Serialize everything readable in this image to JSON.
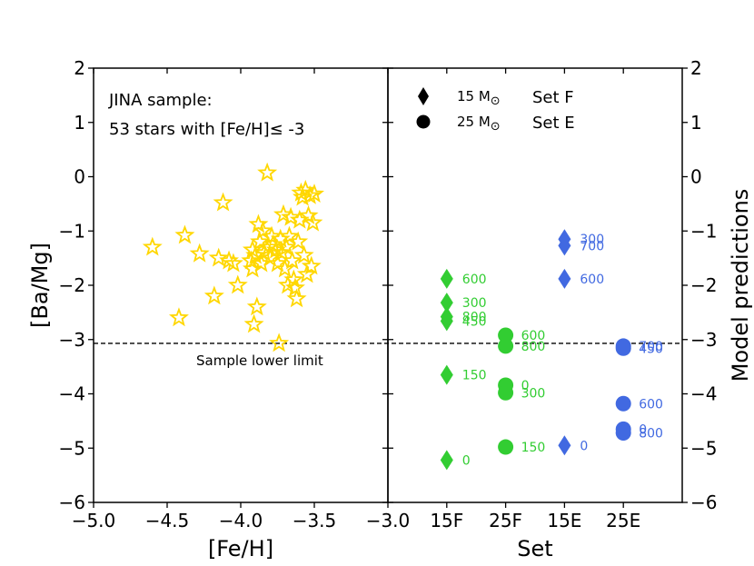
{
  "chart_data": [
    {
      "type": "scatter",
      "panel": "left",
      "xlabel": "[Fe/H]",
      "ylabel": "[Ba/Mg]",
      "xlim": [
        -5.0,
        -3.0
      ],
      "ylim": [
        -6,
        2
      ],
      "x_ticks": [
        -5.0,
        -4.5,
        -4.0,
        -3.5,
        -3.0
      ],
      "x_tick_labels": [
        "−5.0",
        "−4.5",
        "−4.0",
        "−3.5",
        "−3.0"
      ],
      "y_ticks": [
        2,
        1,
        0,
        -1,
        -2,
        -3,
        -4,
        -5,
        -6
      ],
      "y_tick_labels": [
        "2",
        "1",
        "0",
        "−1",
        "−2",
        "−3",
        "−4",
        "−5",
        "−6"
      ],
      "annotation_line1": "JINA sample:",
      "annotation_line2": "53 stars with [Fe/H]≤ -3",
      "limit_value": -3.07,
      "limit_label": "Sample lower limit",
      "marker": "star",
      "marker_color": "#FFD700",
      "points": [
        {
          "x": -4.6,
          "y": -1.3
        },
        {
          "x": -4.42,
          "y": -2.6
        },
        {
          "x": -4.38,
          "y": -1.08
        },
        {
          "x": -4.28,
          "y": -1.42
        },
        {
          "x": -4.18,
          "y": -2.2
        },
        {
          "x": -4.15,
          "y": -1.5
        },
        {
          "x": -4.12,
          "y": -0.48
        },
        {
          "x": -4.08,
          "y": -1.55
        },
        {
          "x": -4.05,
          "y": -1.6
        },
        {
          "x": -4.02,
          "y": -2.0
        },
        {
          "x": -3.93,
          "y": -1.55
        },
        {
          "x": -3.92,
          "y": -1.35
        },
        {
          "x": -3.92,
          "y": -1.7
        },
        {
          "x": -3.91,
          "y": -2.72
        },
        {
          "x": -3.9,
          "y": -1.45
        },
        {
          "x": -3.89,
          "y": -2.4
        },
        {
          "x": -3.88,
          "y": -0.88
        },
        {
          "x": -3.87,
          "y": -1.2
        },
        {
          "x": -3.86,
          "y": -1.6
        },
        {
          "x": -3.85,
          "y": -1.0
        },
        {
          "x": -3.84,
          "y": -1.4
        },
        {
          "x": -3.82,
          "y": 0.07
        },
        {
          "x": -3.81,
          "y": -1.3
        },
        {
          "x": -3.8,
          "y": -1.5
        },
        {
          "x": -3.79,
          "y": -1.1
        },
        {
          "x": -3.78,
          "y": -1.25
        },
        {
          "x": -3.76,
          "y": -1.35
        },
        {
          "x": -3.75,
          "y": -1.6
        },
        {
          "x": -3.74,
          "y": -3.07
        },
        {
          "x": -3.73,
          "y": -1.15
        },
        {
          "x": -3.72,
          "y": -1.4
        },
        {
          "x": -3.71,
          "y": -0.7
        },
        {
          "x": -3.7,
          "y": -1.7
        },
        {
          "x": -3.69,
          "y": -1.3
        },
        {
          "x": -3.68,
          "y": -2.0
        },
        {
          "x": -3.67,
          "y": -1.1
        },
        {
          "x": -3.66,
          "y": -0.75
        },
        {
          "x": -3.65,
          "y": -1.55
        },
        {
          "x": -3.64,
          "y": -1.9
        },
        {
          "x": -3.63,
          "y": -2.05
        },
        {
          "x": -3.62,
          "y": -2.25
        },
        {
          "x": -3.61,
          "y": -1.2
        },
        {
          "x": -3.6,
          "y": -0.8
        },
        {
          "x": -3.59,
          "y": -0.3
        },
        {
          "x": -3.58,
          "y": -0.38
        },
        {
          "x": -3.57,
          "y": -1.45
        },
        {
          "x": -3.56,
          "y": -0.25
        },
        {
          "x": -3.55,
          "y": -1.8
        },
        {
          "x": -3.54,
          "y": -0.72
        },
        {
          "x": -3.53,
          "y": -0.35
        },
        {
          "x": -3.52,
          "y": -1.65
        },
        {
          "x": -3.51,
          "y": -0.85
        },
        {
          "x": -3.5,
          "y": -0.32
        }
      ]
    },
    {
      "type": "scatter",
      "panel": "right",
      "xlabel": "Set",
      "ylabel": "Model predictions",
      "categories": [
        "15F",
        "25F",
        "15E",
        "25E"
      ],
      "x_tick_pos": [
        1,
        2,
        3,
        4
      ],
      "xlim": [
        0.0,
        5.0
      ],
      "ylim": [
        -6,
        2
      ],
      "y_ticks": [
        2,
        1,
        0,
        -1,
        -2,
        -3,
        -4,
        -5,
        -6
      ],
      "y_tick_labels": [
        "2",
        "1",
        "0",
        "−1",
        "−2",
        "−3",
        "−4",
        "−5",
        "−6"
      ],
      "legend": [
        {
          "marker": "diamond",
          "mass_label": "15 M",
          "set_label": "Set F",
          "set_color": "#32CD32"
        },
        {
          "marker": "circle",
          "mass_label": "25 M",
          "set_label": "Set E",
          "set_color": "#4169E1"
        }
      ],
      "solar_symbol": "⊙",
      "series": [
        {
          "name": "15F",
          "x": 1,
          "marker": "diamond",
          "color": "#32CD32",
          "points": [
            {
              "y": -1.88,
              "label": "600"
            },
            {
              "y": -2.32,
              "label": "300"
            },
            {
              "y": -2.58,
              "label": "800"
            },
            {
              "y": -2.66,
              "label": "450"
            },
            {
              "y": -3.65,
              "label": "150"
            },
            {
              "y": -5.22,
              "label": "0"
            }
          ]
        },
        {
          "name": "25F",
          "x": 2,
          "marker": "circle",
          "color": "#32CD32",
          "points": [
            {
              "y": -2.92,
              "label": "600"
            },
            {
              "y": -3.12,
              "label": "800"
            },
            {
              "y": -3.84,
              "label": "0"
            },
            {
              "y": -3.98,
              "label": "300"
            },
            {
              "y": -4.98,
              "label": "150"
            }
          ]
        },
        {
          "name": "15E",
          "x": 3,
          "marker": "diamond",
          "color": "#4169E1",
          "points": [
            {
              "y": -1.15,
              "label": "300"
            },
            {
              "y": -1.27,
              "label": "700"
            },
            {
              "y": -1.88,
              "label": "600"
            },
            {
              "y": -4.95,
              "label": "0"
            }
          ]
        },
        {
          "name": "25E",
          "x": 4,
          "marker": "circle",
          "color": "#4169E1",
          "points": [
            {
              "y": -3.12,
              "label": "700"
            },
            {
              "y": -3.16,
              "label": "450"
            },
            {
              "y": -4.18,
              "label": "600"
            },
            {
              "y": -4.65,
              "label": "0"
            },
            {
              "y": -4.72,
              "label": "800"
            }
          ]
        }
      ]
    }
  ]
}
